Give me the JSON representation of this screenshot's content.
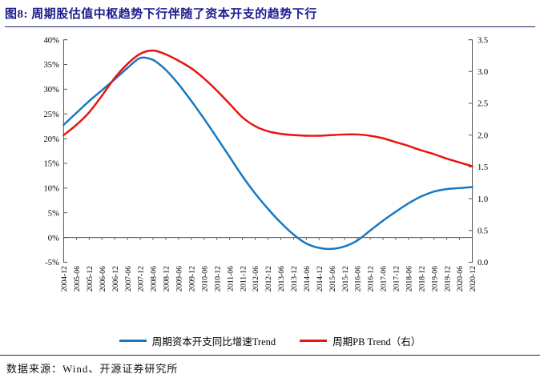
{
  "header": {
    "title": "图8:  周期股估值中枢趋势下行伴随了资本开支的趋势下行"
  },
  "footer": {
    "source": "数据来源：Wind、开源证券研究所"
  },
  "colors": {
    "title_navy": "#1b1b8e",
    "rule_dark": "#23235f",
    "axis_line": "#595959",
    "capex_blue": "#1878bf",
    "pb_red": "#e8140e"
  },
  "chart_data": {
    "type": "line",
    "title": "周期股估值中枢趋势下行伴随了资本开支的趋势下行",
    "categories": [
      "2004-12",
      "2005-06",
      "2005-12",
      "2006-06",
      "2006-12",
      "2007-06",
      "2007-12",
      "2008-06",
      "2008-12",
      "2009-06",
      "2009-12",
      "2010-06",
      "2010-12",
      "2011-06",
      "2011-12",
      "2012-06",
      "2012-12",
      "2013-06",
      "2013-12",
      "2014-06",
      "2014-12",
      "2015-06",
      "2015-12",
      "2016-06",
      "2016-12",
      "2017-06",
      "2017-12",
      "2018-06",
      "2018-12",
      "2019-06",
      "2019-12",
      "2020-06",
      "2020-12"
    ],
    "series": [
      {
        "name": "周期资本开支同比增速Trend",
        "axis": "left",
        "color": "#1878bf",
        "unit": "%",
        "values": [
          22.8,
          25.2,
          27.6,
          29.8,
          32.0,
          34.3,
          36.3,
          35.9,
          33.9,
          31.0,
          27.6,
          24.0,
          20.2,
          16.3,
          12.4,
          8.9,
          5.8,
          3.0,
          0.6,
          -1.2,
          -2.1,
          -2.3,
          -1.8,
          -0.6,
          1.4,
          3.4,
          5.2,
          6.9,
          8.3,
          9.3,
          9.8,
          10.0,
          10.2
        ]
      },
      {
        "name": "周期PB Trend（右）",
        "axis": "right",
        "color": "#e8140e",
        "unit": "x",
        "values": [
          2.0,
          2.16,
          2.36,
          2.62,
          2.9,
          3.12,
          3.28,
          3.33,
          3.27,
          3.17,
          3.05,
          2.89,
          2.7,
          2.49,
          2.28,
          2.14,
          2.06,
          2.02,
          2.0,
          1.99,
          1.99,
          2.0,
          2.01,
          2.01,
          1.99,
          1.95,
          1.89,
          1.83,
          1.76,
          1.7,
          1.63,
          1.57,
          1.51
        ]
      }
    ],
    "left_axis": {
      "ticks": [
        "40%",
        "35%",
        "30%",
        "25%",
        "20%",
        "15%",
        "10%",
        "5%",
        "0%",
        "-5%"
      ],
      "min": -5,
      "max": 40
    },
    "right_axis": {
      "ticks": [
        "3.5",
        "3.0",
        "2.5",
        "2.0",
        "1.5",
        "1.0",
        "0.5",
        "0.0"
      ],
      "min": 0,
      "max": 3.5
    },
    "legend_position": "bottom",
    "grid": false
  }
}
